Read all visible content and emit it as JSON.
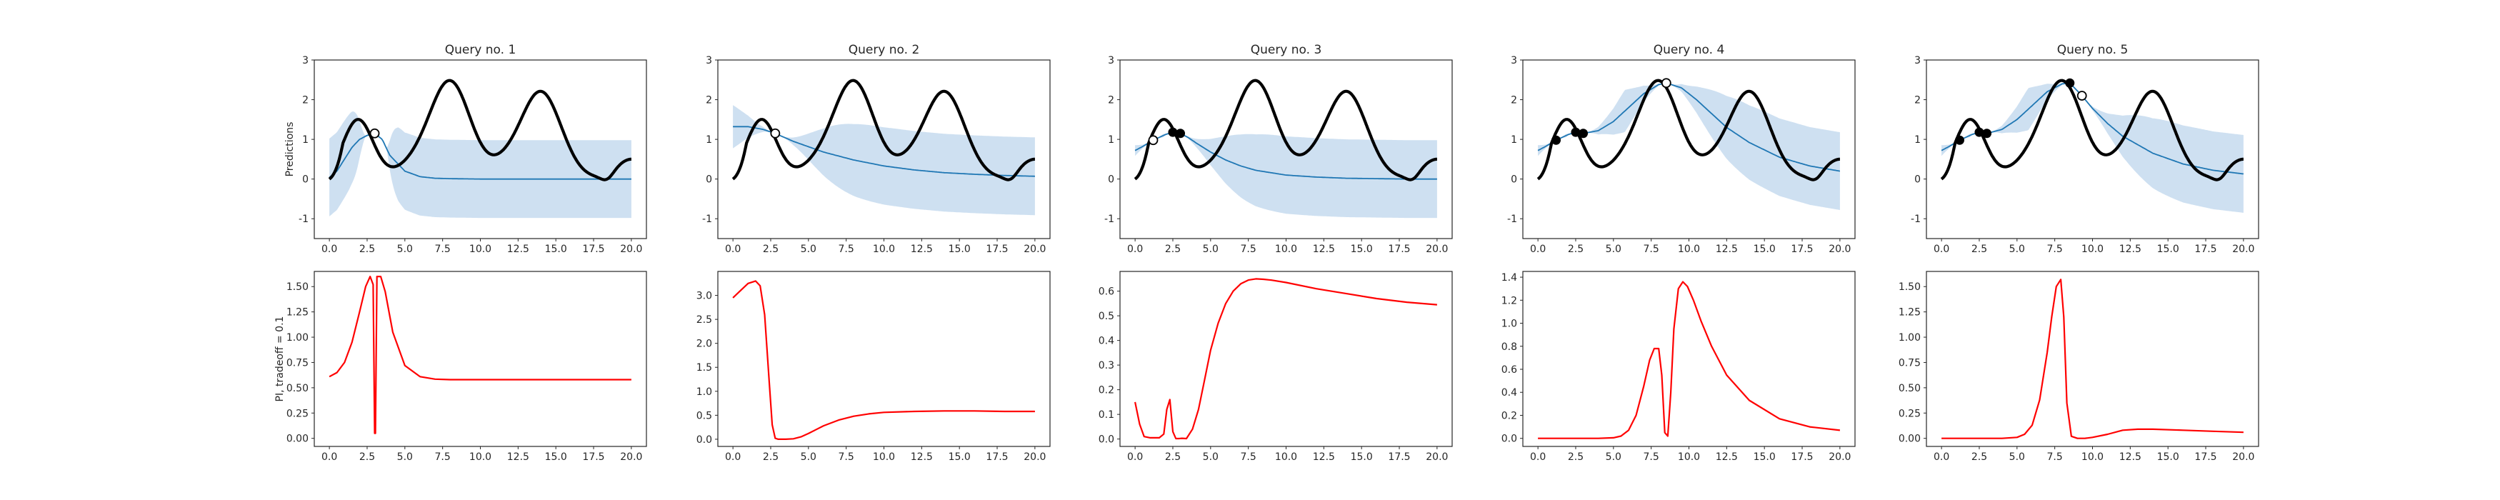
{
  "figure": {
    "titles": [
      "Query no. 1",
      "Query no. 2",
      "Query no. 3",
      "Query no. 4",
      "Query no. 5"
    ],
    "ylabel_top": "Predictions",
    "ylabel_bottom": "PI, tradeoff = 0.1",
    "colors": {
      "objective": "#000000",
      "mean": "#1f77b4",
      "band": "#c6dbef",
      "acq": "#ff0000"
    }
  },
  "chart_data": [
    {
      "type": "line",
      "title": "Query no. 1",
      "ylabel": "Predictions",
      "xlim": [
        0,
        20
      ],
      "ylim": [
        -1.5,
        3
      ],
      "xticks": [
        0.0,
        2.5,
        5.0,
        7.5,
        10.0,
        12.5,
        15.0,
        17.5,
        20.0
      ],
      "yticks": [
        -1,
        0,
        1,
        2,
        3
      ],
      "grid": false,
      "observed_points": [],
      "new_point": [
        3.0,
        1.15
      ],
      "series": []
    },
    {
      "type": "line",
      "title": "Query no. 2",
      "xlim": [
        0,
        20
      ],
      "ylim": [
        -1.5,
        3
      ],
      "xticks": [
        0.0,
        2.5,
        5.0,
        7.5,
        10.0,
        12.5,
        15.0,
        17.5,
        20.0
      ],
      "yticks": [
        -1,
        0,
        1,
        2,
        3
      ],
      "grid": false,
      "observed_points": [],
      "new_point": [
        2.8,
        1.15
      ],
      "series": []
    },
    {
      "type": "line",
      "title": "Query no. 3",
      "xlim": [
        0,
        20
      ],
      "ylim": [
        -1.5,
        3
      ],
      "xticks": [
        0.0,
        2.5,
        5.0,
        7.5,
        10.0,
        12.5,
        15.0,
        17.5,
        20.0
      ],
      "yticks": [
        -1,
        0,
        1,
        2,
        3
      ],
      "grid": false,
      "observed_points": [
        [
          2.5,
          1.18
        ],
        [
          3.0,
          1.15
        ]
      ],
      "new_point": [
        1.2,
        0.98
      ],
      "series": []
    },
    {
      "type": "line",
      "title": "Query no. 4",
      "xlim": [
        0,
        20
      ],
      "ylim": [
        -1.5,
        3
      ],
      "xticks": [
        0.0,
        2.5,
        5.0,
        7.5,
        10.0,
        12.5,
        15.0,
        17.5,
        20.0
      ],
      "yticks": [
        -1,
        0,
        1,
        2,
        3
      ],
      "grid": false,
      "observed_points": [
        [
          1.2,
          0.98
        ],
        [
          2.5,
          1.18
        ],
        [
          3.0,
          1.15
        ]
      ],
      "new_point": [
        8.5,
        2.42
      ],
      "series": []
    },
    {
      "type": "line",
      "title": "Query no. 5",
      "xlim": [
        0,
        20
      ],
      "ylim": [
        -1.5,
        3
      ],
      "xticks": [
        0.0,
        2.5,
        5.0,
        7.5,
        10.0,
        12.5,
        15.0,
        17.5,
        20.0
      ],
      "yticks": [
        -1,
        0,
        1,
        2,
        3
      ],
      "grid": false,
      "observed_points": [
        [
          1.2,
          0.98
        ],
        [
          2.5,
          1.18
        ],
        [
          3.0,
          1.15
        ],
        [
          8.5,
          2.42
        ]
      ],
      "new_point": [
        9.3,
        2.1
      ],
      "series": []
    },
    {
      "type": "line",
      "ylabel": "PI, tradeoff = 0.1",
      "xlim": [
        0,
        20
      ],
      "ylim": [
        -0.08,
        1.65
      ],
      "xticks": [
        0.0,
        2.5,
        5.0,
        7.5,
        10.0,
        12.5,
        15.0,
        17.5,
        20.0
      ],
      "yticks": [
        0.0,
        0.25,
        0.5,
        0.75,
        1.0,
        1.25,
        1.5
      ],
      "ytick_labels": [
        "0.00",
        "0.25",
        "0.50",
        "0.75",
        "1.00",
        "1.25",
        "1.50"
      ],
      "series": [
        {
          "x": [
            0,
            0.5,
            1,
            1.5,
            2,
            2.4,
            2.7,
            2.9,
            3.0,
            3.05,
            3.15,
            3.4,
            3.7,
            4.2,
            5,
            6,
            7,
            8,
            10,
            15,
            20
          ],
          "y": [
            0.61,
            0.65,
            0.75,
            0.95,
            1.25,
            1.5,
            1.6,
            1.52,
            0.05,
            0.05,
            1.6,
            1.6,
            1.45,
            1.05,
            0.72,
            0.61,
            0.585,
            0.58,
            0.58,
            0.58,
            0.58
          ]
        }
      ]
    },
    {
      "type": "line",
      "xlim": [
        0,
        20
      ],
      "ylim": [
        -0.15,
        3.5
      ],
      "xticks": [
        0.0,
        2.5,
        5.0,
        7.5,
        10.0,
        12.5,
        15.0,
        17.5,
        20.0
      ],
      "yticks": [
        0.0,
        0.5,
        1.0,
        1.5,
        2.0,
        2.5,
        3.0
      ],
      "ytick_labels": [
        "0.0",
        "0.5",
        "1.0",
        "1.5",
        "2.0",
        "2.5",
        "3.0"
      ],
      "series": [
        {
          "x": [
            0,
            0.5,
            1,
            1.5,
            1.8,
            2.1,
            2.4,
            2.6,
            2.8,
            3,
            3.5,
            4,
            4.5,
            5,
            6,
            7,
            8,
            9,
            10,
            12,
            14,
            16,
            18,
            20
          ],
          "y": [
            2.95,
            3.1,
            3.25,
            3.3,
            3.2,
            2.6,
            1.2,
            0.3,
            0.02,
            0.0,
            0.0,
            0.01,
            0.05,
            0.12,
            0.28,
            0.4,
            0.48,
            0.53,
            0.56,
            0.58,
            0.59,
            0.59,
            0.58,
            0.58
          ]
        }
      ]
    },
    {
      "type": "line",
      "xlim": [
        0,
        20
      ],
      "ylim": [
        -0.03,
        0.68
      ],
      "xticks": [
        0.0,
        2.5,
        5.0,
        7.5,
        10.0,
        12.5,
        15.0,
        17.5,
        20.0
      ],
      "yticks": [
        0.0,
        0.1,
        0.2,
        0.3,
        0.4,
        0.5,
        0.6
      ],
      "ytick_labels": [
        "0.0",
        "0.1",
        "0.2",
        "0.3",
        "0.4",
        "0.5",
        "0.6"
      ],
      "series": [
        {
          "x": [
            0,
            0.3,
            0.6,
            1.0,
            1.3,
            1.6,
            1.9,
            2.1,
            2.3,
            2.5,
            2.7,
            2.9,
            3.1,
            3.4,
            3.8,
            4.2,
            4.6,
            5.0,
            5.5,
            6.0,
            6.5,
            7,
            7.5,
            8,
            8.5,
            9,
            10,
            12,
            14,
            16,
            18,
            20
          ],
          "y": [
            0.15,
            0.06,
            0.01,
            0.005,
            0.005,
            0.005,
            0.02,
            0.12,
            0.16,
            0.03,
            0.002,
            0.002,
            0.003,
            0.002,
            0.04,
            0.12,
            0.24,
            0.36,
            0.47,
            0.55,
            0.6,
            0.63,
            0.645,
            0.65,
            0.648,
            0.645,
            0.635,
            0.61,
            0.59,
            0.57,
            0.555,
            0.545
          ]
        }
      ]
    },
    {
      "type": "line",
      "xlim": [
        0,
        20
      ],
      "ylim": [
        -0.07,
        1.45
      ],
      "xticks": [
        0.0,
        2.5,
        5.0,
        7.5,
        10.0,
        12.5,
        15.0,
        17.5,
        20.0
      ],
      "yticks": [
        0.0,
        0.2,
        0.4,
        0.6,
        0.8,
        1.0,
        1.2,
        1.4
      ],
      "ytick_labels": [
        "0.0",
        "0.2",
        "0.4",
        "0.6",
        "0.8",
        "1.0",
        "1.2",
        "1.4"
      ],
      "series": [
        {
          "x": [
            0,
            2,
            4,
            5,
            5.5,
            6,
            6.5,
            7,
            7.4,
            7.7,
            8.0,
            8.2,
            8.4,
            8.6,
            8.8,
            9.0,
            9.3,
            9.6,
            9.9,
            10.3,
            10.8,
            11.5,
            12.5,
            14,
            16,
            18,
            20
          ],
          "y": [
            0.0,
            0.0,
            0.0,
            0.005,
            0.02,
            0.07,
            0.2,
            0.45,
            0.68,
            0.78,
            0.78,
            0.55,
            0.05,
            0.02,
            0.4,
            0.95,
            1.3,
            1.36,
            1.32,
            1.2,
            1.02,
            0.8,
            0.55,
            0.33,
            0.17,
            0.1,
            0.07
          ]
        }
      ]
    },
    {
      "type": "line",
      "xlim": [
        0,
        20
      ],
      "ylim": [
        -0.08,
        1.65
      ],
      "xticks": [
        0.0,
        2.5,
        5.0,
        7.5,
        10.0,
        12.5,
        15.0,
        17.5,
        20.0
      ],
      "yticks": [
        0.0,
        0.25,
        0.5,
        0.75,
        1.0,
        1.25,
        1.5
      ],
      "ytick_labels": [
        "0.00",
        "0.25",
        "0.50",
        "0.75",
        "1.00",
        "1.25",
        "1.50"
      ],
      "series": [
        {
          "x": [
            0,
            2,
            3,
            4,
            5,
            5.5,
            6,
            6.5,
            7,
            7.3,
            7.6,
            7.9,
            8.1,
            8.3,
            8.6,
            9,
            9.5,
            10,
            11,
            12,
            13,
            14,
            16,
            18,
            20
          ],
          "y": [
            0.0,
            0.0,
            0.0,
            0.0,
            0.01,
            0.04,
            0.13,
            0.38,
            0.85,
            1.2,
            1.5,
            1.57,
            1.2,
            0.35,
            0.02,
            0.0,
            0.0,
            0.01,
            0.04,
            0.08,
            0.09,
            0.09,
            0.08,
            0.07,
            0.06
          ]
        }
      ]
    }
  ]
}
